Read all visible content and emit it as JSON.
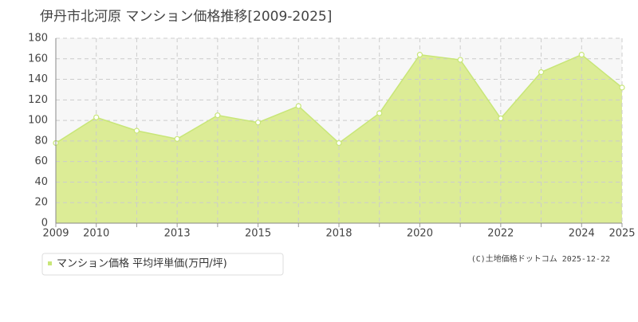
{
  "chart_data": {
    "type": "area",
    "title": "伊丹市北河原 マンション価格推移[2009-2025]",
    "categories": [
      "2009",
      "2010",
      null,
      "2013",
      null,
      "2015",
      null,
      "2018",
      null,
      "2020",
      null,
      "2022",
      null,
      "2024",
      "2025"
    ],
    "series": [
      {
        "name": "マンション価格 平均坪単価(万円/坪)",
        "color": "#c8e678",
        "values": [
          78,
          103,
          90,
          82,
          105,
          98,
          114,
          78,
          107,
          164,
          159,
          102,
          147,
          164,
          132
        ]
      }
    ],
    "ylim": [
      0,
      180
    ],
    "yticks": [
      0,
      20,
      40,
      60,
      80,
      100,
      120,
      140,
      160,
      180
    ],
    "grid": true,
    "footer": "(C)土地価格ドットコム 2025-12-22"
  }
}
